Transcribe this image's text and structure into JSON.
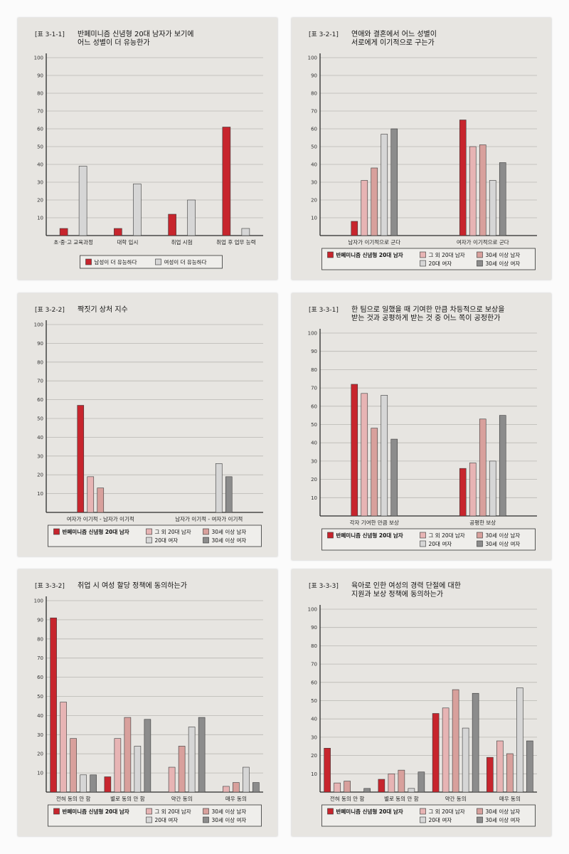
{
  "colors": {
    "s0": "#c7252d",
    "s1": "#e7b4b4",
    "s2": "#d8a09c",
    "s3": "#d6d6d6",
    "s4": "#8c8c8c"
  },
  "legend_all": [
    "반페미니즘 신념형 20대 남자",
    "그 외 20대 남자",
    "30세 이상 남자",
    "20대 여자",
    "30세 이상 여자"
  ],
  "chart_data": [
    {
      "type": "bar",
      "code": "[표 3-1-1]",
      "title_lines": [
        "반페미니즘 신념형 20대 남자가 보기에",
        "어느 성별이 더 유능한가"
      ],
      "categories": [
        "초·중·고 교육과정",
        "대학 입시",
        "취업 시험",
        "취업 후 업무 능력"
      ],
      "series": [
        {
          "name": "남성이 더 유능하다",
          "values": [
            4,
            4,
            12,
            61
          ]
        },
        {
          "name": "여성이 더 유능하다",
          "values": [
            39,
            29,
            20,
            4
          ]
        }
      ],
      "ylim": [
        0,
        100
      ],
      "yticks": [
        "10",
        "20",
        "30",
        "40",
        "50",
        "60",
        "70",
        "80",
        "90",
        "100"
      ],
      "legend": "bottom"
    },
    {
      "type": "bar",
      "code": "[표 3-2-1]",
      "title_lines": [
        "연애와 결혼에서 어느 성별이",
        "서로에게 이기적으로 구는가"
      ],
      "categories": [
        "남자가 이기적으로 군다",
        "여자가 이기적으로 군다"
      ],
      "series": [
        {
          "values": [
            8,
            65
          ]
        },
        {
          "values": [
            31,
            50
          ]
        },
        {
          "values": [
            38,
            51
          ]
        },
        {
          "values": [
            57,
            31
          ]
        },
        {
          "values": [
            60,
            41
          ]
        }
      ],
      "ylim": [
        0,
        100
      ],
      "yticks": [
        "10",
        "20",
        "30",
        "40",
        "50",
        "60",
        "70",
        "80",
        "90",
        "100"
      ],
      "legend": "bottom"
    },
    {
      "type": "bar",
      "code": "[표 3-2-2]",
      "title_lines": [
        "짝짓기 상처 지수"
      ],
      "categories": [
        "여자가 이기적 - 남자가 이기적",
        "남자가 이기적 - 여자가 이기적"
      ],
      "series": [
        {
          "values": [
            57,
            0
          ]
        },
        {
          "values": [
            19,
            0
          ]
        },
        {
          "values": [
            13,
            0
          ]
        },
        {
          "values": [
            0,
            26
          ]
        },
        {
          "values": [
            0,
            19
          ]
        }
      ],
      "ylim": [
        0,
        100
      ],
      "yticks": [
        "10",
        "20",
        "30",
        "40",
        "50",
        "60",
        "70",
        "80",
        "90",
        "100"
      ],
      "legend": "bottom"
    },
    {
      "type": "bar",
      "code": "[표 3-3-1]",
      "title_lines": [
        "한 팀으로 일했을 때 기여한 만큼 차등적으로 보상을",
        "받는 것과 공평하게 받는 것 중 어느 쪽이 공정한가"
      ],
      "categories": [
        "각자 기여한 만큼 보상",
        "공평한 보상"
      ],
      "series": [
        {
          "values": [
            72,
            26
          ]
        },
        {
          "values": [
            67,
            29
          ]
        },
        {
          "values": [
            48,
            53
          ]
        },
        {
          "values": [
            66,
            30
          ]
        },
        {
          "values": [
            42,
            55
          ]
        }
      ],
      "ylim": [
        0,
        100
      ],
      "yticks": [
        "10",
        "20",
        "30",
        "40",
        "50",
        "60",
        "70",
        "80",
        "90",
        "100"
      ],
      "legend": "bottom"
    },
    {
      "type": "bar",
      "code": "[표 3-3-2]",
      "title_lines": [
        "취업 시 여성 할당 정책에 동의하는가"
      ],
      "categories": [
        "전혀 동의 안 함",
        "별로 동의 안 함",
        "약간 동의",
        "매우 동의"
      ],
      "series": [
        {
          "values": [
            91,
            8,
            0,
            0
          ]
        },
        {
          "values": [
            47,
            28,
            13,
            3
          ]
        },
        {
          "values": [
            28,
            39,
            24,
            5
          ]
        },
        {
          "values": [
            9,
            24,
            34,
            13
          ]
        },
        {
          "values": [
            9,
            38,
            39,
            5
          ]
        }
      ],
      "ylim": [
        0,
        100
      ],
      "yticks": [
        "10",
        "20",
        "30",
        "40",
        "50",
        "60",
        "70",
        "80",
        "90",
        "100"
      ],
      "legend": "bottom"
    },
    {
      "type": "bar",
      "code": "[표 3-3-3]",
      "title_lines": [
        "육아로 인한 여성의 경력 단절에 대한",
        "지원과 보상 정책에 동의하는가"
      ],
      "categories": [
        "전혀 동의 안 함",
        "별로 동의 안 함",
        "약간 동의",
        "매우 동의"
      ],
      "series": [
        {
          "values": [
            24,
            7,
            43,
            19
          ]
        },
        {
          "values": [
            5,
            10,
            46,
            28
          ]
        },
        {
          "values": [
            6,
            12,
            56,
            21
          ]
        },
        {
          "values": [
            0,
            2,
            35,
            57
          ]
        },
        {
          "values": [
            2,
            11,
            54,
            28
          ]
        }
      ],
      "ylim": [
        0,
        100
      ],
      "yticks": [
        "10",
        "20",
        "30",
        "40",
        "50",
        "60",
        "70",
        "80",
        "90",
        "100"
      ],
      "legend": "bottom"
    }
  ]
}
